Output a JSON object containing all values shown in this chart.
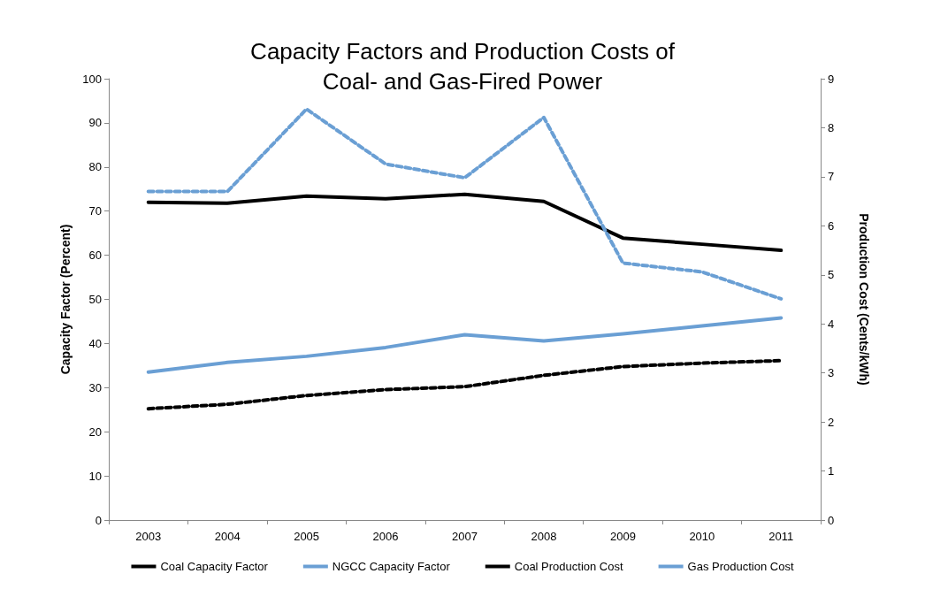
{
  "chart_data": {
    "type": "line",
    "title": "Capacity Factors and Production Costs of\nCoal- and Gas-Fired Power",
    "ylabel": "Capacity Factor (Percent)",
    "y2label": "Production Cost (Cents/kWh)",
    "categories": [
      "2003",
      "2004",
      "2005",
      "2006",
      "2007",
      "2008",
      "2009",
      "2010",
      "2011"
    ],
    "series": [
      {
        "name": "Coal Capacity Factor",
        "color": "#000000",
        "line_style": "solid",
        "values": [
          72.0,
          71.8,
          73.4,
          72.8,
          73.8,
          72.2,
          63.9,
          62.5,
          61.1
        ]
      },
      {
        "name": "NGCC Capacity Factor",
        "color": "#6a9fd4",
        "line_style": "solid",
        "values": [
          33.5,
          35.7,
          37.1,
          39.1,
          42.0,
          40.6,
          42.2,
          44.0,
          45.8
        ]
      },
      {
        "name": "Coal Production Cost",
        "color": "#000000",
        "line_style": "dashed",
        "axis": "y2",
        "values": [
          2.27,
          2.36,
          2.54,
          2.66,
          2.72,
          2.95,
          3.13,
          3.2,
          3.25
        ]
      },
      {
        "name": "Gas Production Cost",
        "color": "#6a9fd4",
        "line_style": "dashed",
        "axis": "y2",
        "values": [
          6.7,
          6.7,
          8.38,
          7.26,
          6.98,
          8.21,
          5.24,
          5.06,
          4.51
        ]
      }
    ],
    "ylim": [
      0,
      100
    ],
    "yticks": [
      0,
      10,
      20,
      30,
      40,
      50,
      60,
      70,
      80,
      90,
      100
    ],
    "y2lim": [
      0,
      9
    ],
    "y2ticks": [
      0,
      1,
      2,
      3,
      4,
      5,
      6,
      7,
      8,
      9
    ],
    "grid": false,
    "legend": "bottom",
    "marker": "none"
  }
}
